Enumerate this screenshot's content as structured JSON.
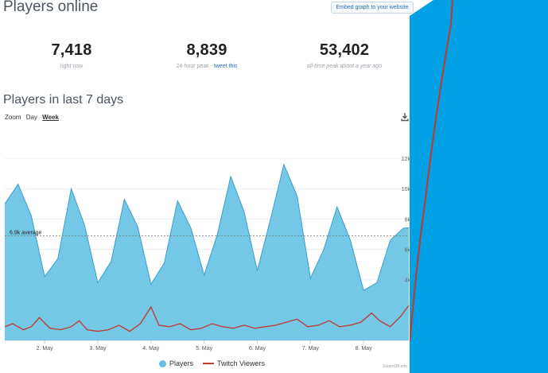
{
  "header": {
    "title": "Players online",
    "embed_label": "Embed graph to your website"
  },
  "stats": {
    "now_value": "7,418",
    "now_label": "right now",
    "peak24_value": "8,839",
    "peak24_label": "24-hour peak - ",
    "peak24_link": "tweet this",
    "alltime_value": "53,402",
    "alltime_label": "all-time peak ",
    "alltime_suffix": "about a year ago"
  },
  "chart_section": {
    "title": "Players in last 7 days",
    "zoom_label": "Zoom",
    "zoom_options": [
      "Day",
      "Week"
    ],
    "zoom_selected": "Week",
    "download_icon": "download-icon",
    "average_label": "6.9k average",
    "credit": "SteamDB.info"
  },
  "legend": {
    "players": "Players",
    "twitch": "Twitch Viewers"
  },
  "colors": {
    "players_fill": "#66c1e3",
    "players_line": "#3a9fcb",
    "twitch_line": "#c0392b",
    "overlay": "#00a0e4"
  },
  "chart_data": {
    "type": "area",
    "x_labels": [
      "2. May",
      "3. May",
      "4. May",
      "5. May",
      "6. May",
      "7. May",
      "8. May"
    ],
    "y_ticks": [
      "12k",
      "10k",
      "8k",
      "6k",
      "4k"
    ],
    "ylim": [
      0,
      13000
    ],
    "average": 6900,
    "average_label": "6.9k average",
    "series": [
      {
        "name": "Players",
        "x": [
          1.25,
          1.5,
          1.75,
          2.0,
          2.25,
          2.5,
          2.75,
          3.0,
          3.25,
          3.5,
          3.75,
          4.0,
          4.25,
          4.5,
          4.75,
          5.0,
          5.25,
          5.5,
          5.75,
          6.0,
          6.25,
          6.5,
          6.75,
          7.0,
          7.25,
          7.5,
          7.75,
          8.0,
          8.25,
          8.5,
          8.75,
          8.85
        ],
        "y": [
          9000,
          10300,
          8200,
          4200,
          5400,
          10000,
          7600,
          3800,
          5200,
          9300,
          7500,
          3700,
          5100,
          9200,
          7400,
          4300,
          7000,
          10800,
          8500,
          4600,
          8000,
          11600,
          9500,
          4100,
          6000,
          8800,
          6600,
          3300,
          3800,
          6600,
          7400,
          7418
        ]
      },
      {
        "name": "Twitch Viewers",
        "x": [
          1.25,
          1.4,
          1.6,
          1.75,
          1.9,
          2.1,
          2.3,
          2.5,
          2.65,
          2.8,
          3.0,
          3.2,
          3.4,
          3.6,
          3.8,
          4.0,
          4.15,
          4.35,
          4.55,
          4.75,
          4.95,
          5.15,
          5.35,
          5.55,
          5.75,
          5.95,
          6.15,
          6.35,
          6.55,
          6.75,
          6.95,
          7.15,
          7.35,
          7.55,
          7.75,
          7.95,
          8.15,
          8.3,
          8.5,
          8.7,
          8.85
        ],
        "y": [
          900,
          1100,
          700,
          900,
          1500,
          800,
          700,
          900,
          1300,
          700,
          600,
          700,
          1000,
          600,
          1100,
          2200,
          1000,
          900,
          1100,
          700,
          800,
          1100,
          900,
          800,
          1000,
          800,
          900,
          1000,
          1200,
          1400,
          900,
          1000,
          1300,
          900,
          1000,
          1200,
          1800,
          1300,
          900,
          1600,
          2300
        ]
      }
    ]
  }
}
